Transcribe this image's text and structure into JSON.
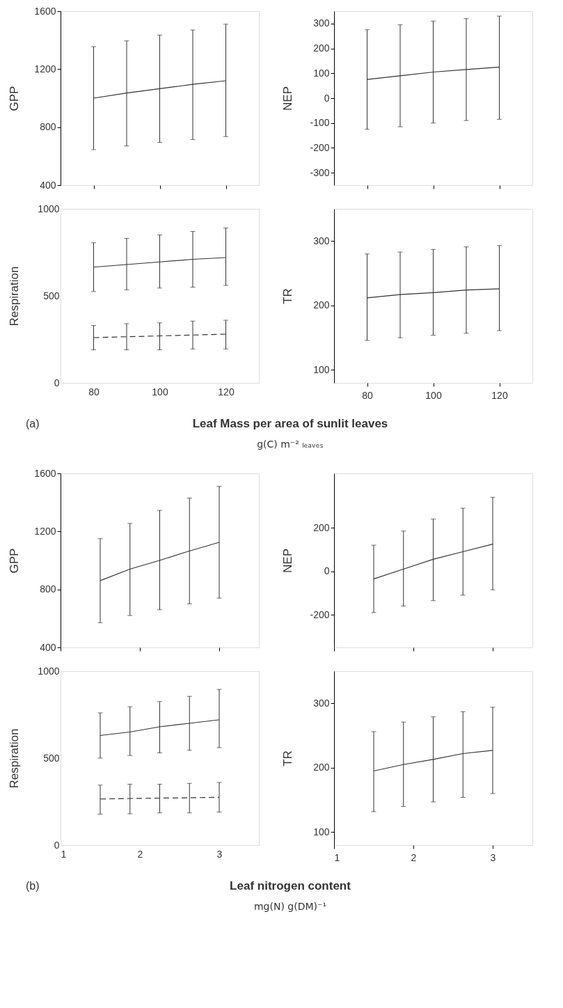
{
  "chart_data": [
    {
      "type": "line",
      "ylabel": "GPP",
      "x": [
        80,
        90,
        100,
        110,
        120
      ],
      "xlim": [
        70,
        130
      ],
      "xticks": [
        80,
        100,
        120
      ],
      "ylim": [
        400,
        1600
      ],
      "yticks": [
        400,
        800,
        1200,
        1600
      ],
      "grid": false,
      "tick_labels": "y",
      "series": [
        {
          "color": "#333333",
          "line_style": "solid",
          "values": [
            1000,
            1035,
            1065,
            1095,
            1120
          ],
          "errors": [
            [
              645,
              1355
            ],
            [
              670,
              1395
            ],
            [
              695,
              1435
            ],
            [
              715,
              1470
            ],
            [
              735,
              1510
            ]
          ]
        }
      ]
    },
    {
      "type": "line",
      "ylabel": "NEP",
      "x": [
        80,
        90,
        100,
        110,
        120
      ],
      "xlim": [
        70,
        130
      ],
      "xticks": [
        80,
        100,
        120
      ],
      "ylim": [
        -350,
        350
      ],
      "yticks": [
        -300,
        -200,
        -100,
        0,
        100,
        200,
        300
      ],
      "grid": false,
      "tick_labels": "y",
      "series": [
        {
          "color": "#333333",
          "line_style": "solid",
          "values": [
            75,
            90,
            105,
            115,
            125
          ],
          "errors": [
            [
              -125,
              275
            ],
            [
              -115,
              295
            ],
            [
              -100,
              310
            ],
            [
              -90,
              320
            ],
            [
              -85,
              330
            ]
          ]
        }
      ]
    },
    {
      "type": "line",
      "ylabel": "Respiration",
      "x": [
        80,
        90,
        100,
        110,
        120
      ],
      "xlim": [
        70,
        130
      ],
      "xticks": [
        80,
        100,
        120
      ],
      "ylim": [
        0,
        1000
      ],
      "yticks": [
        0,
        500,
        1000
      ],
      "grid": false,
      "series": [
        {
          "color": "#333333",
          "line_style": "solid",
          "values": [
            665,
            680,
            695,
            710,
            720
          ],
          "errors": [
            [
              525,
              805
            ],
            [
              535,
              830
            ],
            [
              545,
              850
            ],
            [
              550,
              870
            ],
            [
              560,
              890
            ]
          ]
        },
        {
          "color": "#333333",
          "line_style": "dashed",
          "values": [
            260,
            265,
            270,
            275,
            280
          ],
          "errors": [
            [
              190,
              330
            ],
            [
              190,
              340
            ],
            [
              190,
              345
            ],
            [
              195,
              355
            ],
            [
              195,
              360
            ]
          ]
        }
      ]
    },
    {
      "type": "line",
      "ylabel": "TR",
      "x": [
        80,
        90,
        100,
        110,
        120
      ],
      "xlim": [
        70,
        130
      ],
      "xticks": [
        80,
        100,
        120
      ],
      "ylim": [
        80,
        350
      ],
      "yticks": [
        100,
        200,
        300
      ],
      "grid": false,
      "series": [
        {
          "color": "#333333",
          "line_style": "solid",
          "values": [
            212,
            217,
            220,
            224,
            226
          ],
          "errors": [
            [
              146,
              280
            ],
            [
              150,
              283
            ],
            [
              154,
              287
            ],
            [
              157,
              291
            ],
            [
              161,
              293
            ]
          ]
        }
      ]
    },
    {
      "type": "other",
      "title": "(a)",
      "xlabel": "Leaf Mass per area of sunlit leaves",
      "subtitle": "g(C) m⁻² ₗₑₐᵥₑₛ"
    },
    {
      "type": "line",
      "ylabel": "GPP",
      "x": [
        1.5,
        1.875,
        2.25,
        2.625,
        3
      ],
      "xlim": [
        1,
        3.5
      ],
      "xticks": [
        1,
        2,
        3
      ],
      "ylim": [
        400,
        1600
      ],
      "yticks": [
        400,
        800,
        1200,
        1600
      ],
      "grid": false,
      "tick_labels": "y",
      "series": [
        {
          "color": "#333333",
          "line_style": "solid",
          "values": [
            860,
            940,
            1000,
            1065,
            1125
          ],
          "errors": [
            [
              570,
              1150
            ],
            [
              620,
              1255
            ],
            [
              660,
              1345
            ],
            [
              700,
              1430
            ],
            [
              740,
              1510
            ]
          ]
        }
      ]
    },
    {
      "type": "line",
      "ylabel": "NEP",
      "x": [
        1.5,
        1.875,
        2.25,
        2.625,
        3
      ],
      "xlim": [
        1,
        3.5
      ],
      "xticks": [
        1,
        2,
        3
      ],
      "ylim": [
        -350,
        450
      ],
      "yticks": [
        -200,
        0,
        200
      ],
      "grid": false,
      "tick_labels": "y",
      "series": [
        {
          "color": "#333333",
          "line_style": "solid",
          "values": [
            -35,
            10,
            55,
            90,
            125
          ],
          "errors": [
            [
              -190,
              120
            ],
            [
              -160,
              185
            ],
            [
              -135,
              240
            ],
            [
              -110,
              290
            ],
            [
              -85,
              340
            ]
          ]
        }
      ]
    },
    {
      "type": "line",
      "ylabel": "Respiration",
      "x": [
        1.5,
        1.875,
        2.25,
        2.625,
        3
      ],
      "xlim": [
        1,
        3.5
      ],
      "xticks": [
        1,
        2,
        3
      ],
      "ylim": [
        0,
        1000
      ],
      "yticks": [
        0,
        500,
        1000
      ],
      "grid": false,
      "series": [
        {
          "color": "#333333",
          "line_style": "solid",
          "values": [
            630,
            650,
            680,
            700,
            720
          ],
          "errors": [
            [
              500,
              760
            ],
            [
              515,
              795
            ],
            [
              530,
              825
            ],
            [
              545,
              855
            ],
            [
              560,
              895
            ]
          ]
        },
        {
          "color": "#333333",
          "line_style": "dashed",
          "values": [
            265,
            268,
            270,
            272,
            275
          ],
          "errors": [
            [
              178,
              345
            ],
            [
              180,
              350
            ],
            [
              185,
              350
            ],
            [
              185,
              355
            ],
            [
              190,
              360
            ]
          ]
        }
      ]
    },
    {
      "type": "line",
      "ylabel": "TR",
      "x": [
        1.5,
        1.875,
        2.25,
        2.625,
        3
      ],
      "xlim": [
        1,
        3.5
      ],
      "xticks": [
        1,
        2,
        3
      ],
      "ylim": [
        80,
        350
      ],
      "yticks": [
        100,
        200,
        300
      ],
      "grid": false,
      "series": [
        {
          "color": "#333333",
          "line_style": "solid",
          "values": [
            195,
            205,
            213,
            222,
            227
          ],
          "errors": [
            [
              132,
              256
            ],
            [
              140,
              271
            ],
            [
              147,
              279
            ],
            [
              154,
              287
            ],
            [
              160,
              294
            ]
          ]
        }
      ]
    },
    {
      "type": "other",
      "title": "(b)",
      "xlabel": "Leaf nitrogen content",
      "subtitle": "mg(N) g(DM)⁻¹"
    }
  ]
}
